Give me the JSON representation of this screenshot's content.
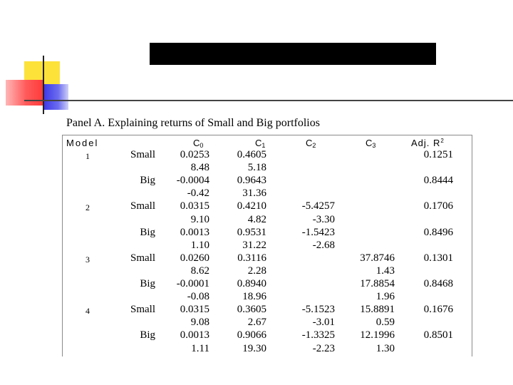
{
  "panel_title": "Panel A. Explaining returns of Small and Big portfolios",
  "headers": {
    "model": "Model",
    "c0": "C",
    "c0_sub": "0",
    "c1": "C",
    "c1_sub": "1",
    "c2": "C",
    "c2_sub": "2",
    "c3": "C",
    "c3_sub": "3",
    "adj": "Adj. R",
    "adj_sup": "2"
  },
  "rows": [
    {
      "model": "1",
      "port": "Small",
      "c0": "0.0253",
      "c1": "0.4605",
      "c2": "",
      "c3": "",
      "adj": "0.1251"
    },
    {
      "model": "",
      "port": "",
      "c0": "8.48",
      "c1": "5.18",
      "c2": "",
      "c3": "",
      "adj": ""
    },
    {
      "model": "",
      "port": "Big",
      "c0": "-0.0004",
      "c1": "0.9643",
      "c2": "",
      "c3": "",
      "adj": "0.8444"
    },
    {
      "model": "",
      "port": "",
      "c0": "-0.42",
      "c1": "31.36",
      "c2": "",
      "c3": "",
      "adj": ""
    },
    {
      "model": "2",
      "port": "Small",
      "c0": "0.0315",
      "c1": "0.4210",
      "c2": "-5.4257",
      "c3": "",
      "adj": "0.1706"
    },
    {
      "model": "",
      "port": "",
      "c0": "9.10",
      "c1": "4.82",
      "c2": "-3.30",
      "c3": "",
      "adj": ""
    },
    {
      "model": "",
      "port": "Big",
      "c0": "0.0013",
      "c1": "0.9531",
      "c2": "-1.5423",
      "c3": "",
      "adj": "0.8496"
    },
    {
      "model": "",
      "port": "",
      "c0": "1.10",
      "c1": "31.22",
      "c2": "-2.68",
      "c3": "",
      "adj": ""
    },
    {
      "model": "3",
      "port": "Small",
      "c0": "0.0260",
      "c1": "0.3116",
      "c2": "",
      "c3": "37.8746",
      "adj": "0.1301"
    },
    {
      "model": "",
      "port": "",
      "c0": "8.62",
      "c1": "2.28",
      "c2": "",
      "c3": "1.43",
      "adj": ""
    },
    {
      "model": "",
      "port": "Big",
      "c0": "-0.0001",
      "c1": "0.8940",
      "c2": "",
      "c3": "17.8854",
      "adj": "0.8468"
    },
    {
      "model": "",
      "port": "",
      "c0": "-0.08",
      "c1": "18.96",
      "c2": "",
      "c3": "1.96",
      "adj": ""
    },
    {
      "model": "4",
      "port": "Small",
      "c0": "0.0315",
      "c1": "0.3605",
      "c2": "-5.1523",
      "c3": "15.8891",
      "adj": "0.1676"
    },
    {
      "model": "",
      "port": "",
      "c0": "9.08",
      "c1": "2.67",
      "c2": "-3.01",
      "c3": "0.59",
      "adj": ""
    },
    {
      "model": "",
      "port": "Big",
      "c0": "0.0013",
      "c1": "0.9066",
      "c2": "-1.3325",
      "c3": "12.1996",
      "adj": "0.8501"
    },
    {
      "model": "",
      "port": "",
      "c0": "1.11",
      "c1": "19.30",
      "c2": "-2.23",
      "c3": "1.30",
      "adj": ""
    }
  ]
}
